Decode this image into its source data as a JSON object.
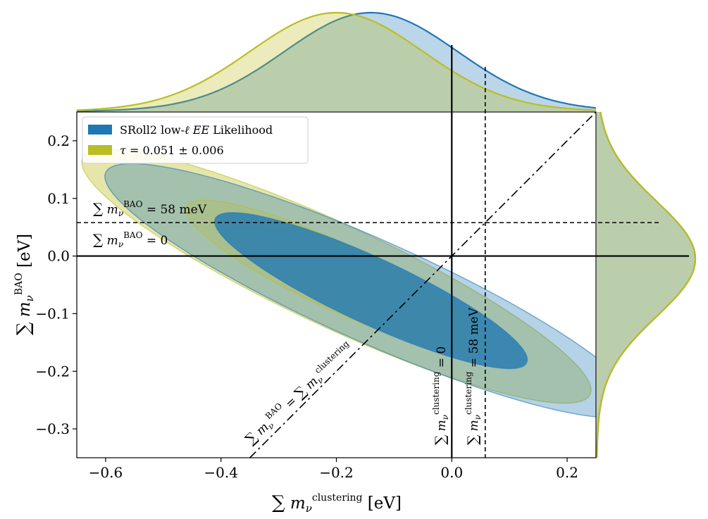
{
  "chart_data": {
    "type": "contour",
    "xlabel": "∑ m_ν^clustering [eV]",
    "ylabel": "∑ m_ν^BAO [eV]",
    "xlim": [
      -0.65,
      0.25
    ],
    "ylim": [
      -0.35,
      0.25
    ],
    "xticks": [
      -0.6,
      -0.4,
      -0.2,
      0.0,
      0.2
    ],
    "xtick_labels": [
      "−0.6",
      "−0.4",
      "−0.2",
      "0.0",
      "0.2"
    ],
    "yticks": [
      -0.3,
      -0.2,
      -0.1,
      0.0,
      0.1,
      0.2
    ],
    "ytick_labels": [
      "−0.3",
      "−0.2",
      "−0.1",
      "0.0",
      "0.1",
      "0.2"
    ],
    "grid": false,
    "legend": {
      "position": "top-left",
      "entries": [
        {
          "label": "SRoll2 low-ℓ EE Likelihood",
          "color": "#1f77b4"
        },
        {
          "label": "τ = 0.051 ± 0.006",
          "color": "#bcbd22"
        }
      ]
    },
    "series": [
      {
        "name": "SRoll2 low-ℓ EE Likelihood",
        "color": "#1f77b4",
        "center": [
          -0.14,
          -0.06
        ],
        "contours": [
          {
            "level": "68%",
            "semi_major": [
              0.27,
              -0.125
            ],
            "semi_minor": [
              0.024,
              0.052
            ]
          },
          {
            "level": "95%",
            "semi_major": [
              0.46,
              -0.205
            ],
            "semi_minor": [
              0.036,
              0.081
            ]
          }
        ]
      },
      {
        "name": "τ = 0.051 ± 0.006",
        "color": "#bcbd22",
        "center": [
          -0.2,
          -0.035
        ],
        "contours": [
          {
            "level": "68%",
            "semi_major": [
              0.26,
              -0.121
            ],
            "semi_minor": [
              0.024,
              0.052
            ]
          },
          {
            "level": "95%",
            "semi_major": [
              0.44,
              -0.205
            ],
            "semi_minor": [
              0.036,
              0.081
            ]
          }
        ]
      }
    ],
    "marginals": {
      "x": [
        {
          "name": "SRoll2 low-ℓ EE Likelihood",
          "mean": -0.14,
          "sigma": 0.15
        },
        {
          "name": "τ = 0.051 ± 0.006",
          "mean": -0.2,
          "sigma": 0.15
        }
      ],
      "y": [
        {
          "name": "SRoll2 low-ℓ EE Likelihood",
          "mean": -0.005,
          "sigma": 0.1
        },
        {
          "name": "τ = 0.051 ± 0.006",
          "mean": -0.005,
          "sigma": 0.1
        }
      ]
    },
    "reference_lines": [
      {
        "orientation": "vertical",
        "x": 0.0,
        "style": "solid",
        "label": "∑ m_ν^clustering = 0"
      },
      {
        "orientation": "vertical",
        "x": 0.058,
        "style": "dashed",
        "label": "∑ m_ν^clustering = 58 meV"
      },
      {
        "orientation": "horizontal",
        "y": 0.0,
        "style": "solid",
        "label": "∑ m_ν^BAO = 0"
      },
      {
        "orientation": "horizontal",
        "y": 0.058,
        "style": "dashed",
        "label": "∑ m_ν^BAO = 58 meV"
      },
      {
        "orientation": "diagonal",
        "from": [
          -0.35,
          -0.35
        ],
        "to": [
          0.25,
          0.25
        ],
        "style": "dashdot",
        "label": "∑ m_ν^BAO = ∑ m_ν^clustering"
      }
    ]
  }
}
